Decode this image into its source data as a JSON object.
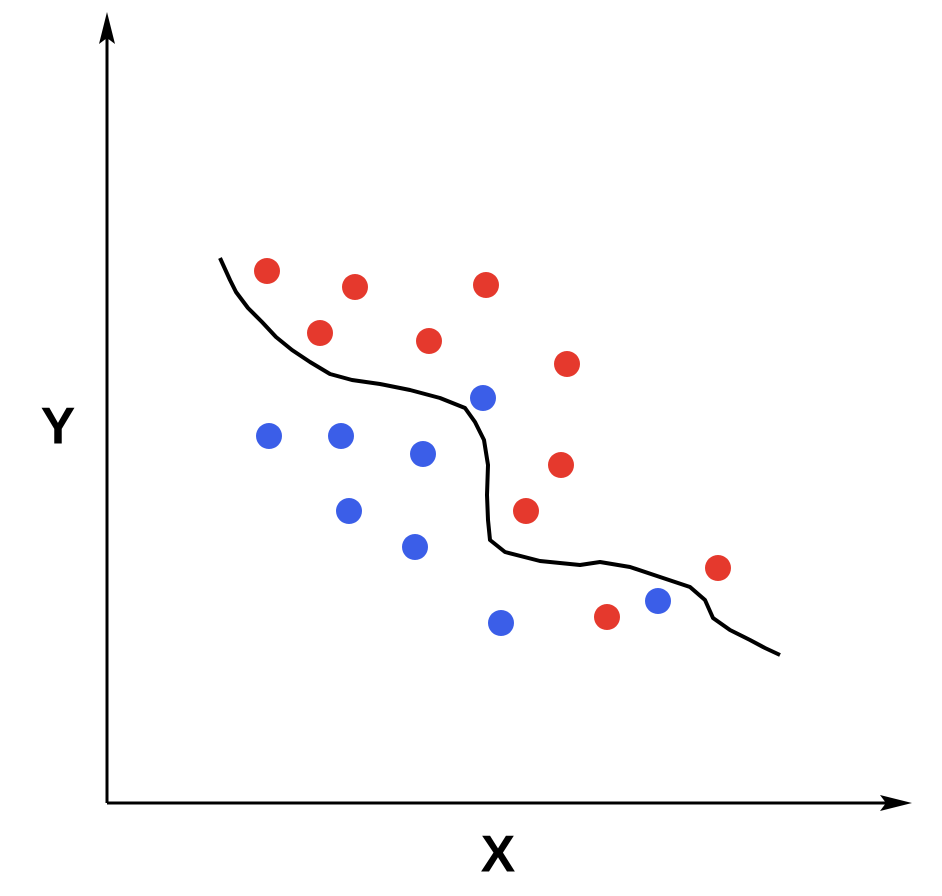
{
  "axes": {
    "x_label": "X",
    "y_label": "Y"
  }
}
